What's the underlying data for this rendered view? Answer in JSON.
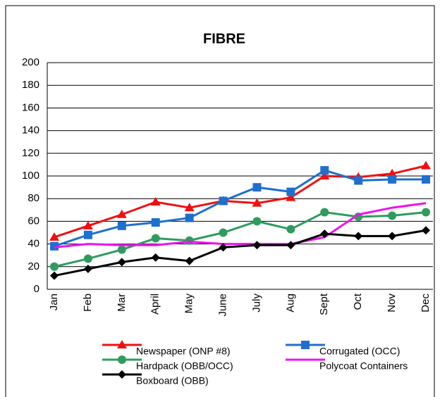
{
  "chart_data": {
    "type": "line",
    "title": "FIBRE",
    "categories": [
      "Jan",
      "Feb",
      "Mar",
      "April",
      "May",
      "June",
      "July",
      "Aug",
      "Sept",
      "Oct",
      "Nov",
      "Dec"
    ],
    "series": [
      {
        "name": "Newspaper (ONP #8)",
        "color": "#ee1111",
        "marker": "triangle",
        "values": [
          46,
          56,
          66,
          77,
          72,
          78,
          76,
          81,
          100,
          99,
          102,
          109
        ]
      },
      {
        "name": "Corrugated (OCC)",
        "color": "#1f6fce",
        "marker": "square",
        "values": [
          38,
          48,
          56,
          59,
          63,
          78,
          90,
          86,
          105,
          96,
          97,
          97
        ]
      },
      {
        "name": "Hardpack (OBB/OCC)",
        "color": "#2e9c5e",
        "marker": "circle",
        "values": [
          20,
          27,
          35,
          45,
          43,
          50,
          60,
          53,
          68,
          64,
          65,
          68
        ]
      },
      {
        "name": "Polycoat Containers",
        "color": "#ee11ee",
        "marker": "none",
        "values": [
          37,
          40,
          39,
          39,
          42,
          40,
          40,
          40,
          46,
          66,
          72,
          76
        ]
      },
      {
        "name": "Boxboard (OBB)",
        "color": "#000000",
        "marker": "diamond",
        "values": [
          12,
          18,
          24,
          28,
          25,
          37,
          39,
          39,
          49,
          47,
          47,
          52
        ]
      }
    ],
    "ylim": [
      0,
      200
    ],
    "yticks": [
      0,
      20,
      40,
      60,
      80,
      100,
      120,
      140,
      160,
      180,
      200
    ],
    "grid": true
  }
}
